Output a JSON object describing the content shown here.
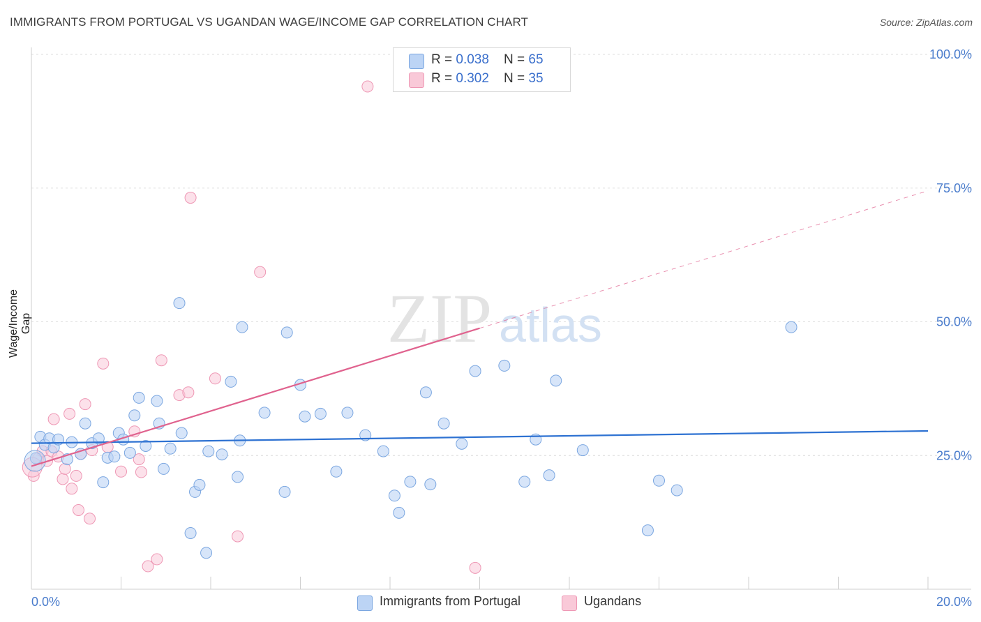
{
  "header": {
    "title": "IMMIGRANTS FROM PORTUGAL VS UGANDAN WAGE/INCOME GAP CORRELATION CHART",
    "source": "Source: ZipAtlas.com"
  },
  "watermark": {
    "zip": "ZIP",
    "atlas": "atlas"
  },
  "legend": {
    "rows": [
      {
        "r_label": "R = ",
        "r_value": "0.038",
        "n_label": "N = ",
        "n_value": "65"
      },
      {
        "r_label": "R = ",
        "r_value": "0.302",
        "n_label": "N = ",
        "n_value": "35"
      }
    ],
    "bottom": [
      "Immigrants from Portugal",
      "Ugandans"
    ]
  },
  "colors": {
    "blue_fill": "#bcd4f5",
    "blue_stroke": "#7aa6e0",
    "blue_line": "#2e72d2",
    "pink_fill": "#f9c9d8",
    "pink_stroke": "#ee97b4",
    "pink_line": "#e0628e"
  },
  "chart_data": {
    "type": "scatter",
    "title": "IMMIGRANTS FROM PORTUGAL VS UGANDAN WAGE/INCOME GAP CORRELATION CHART",
    "xlabel": "",
    "ylabel": "Wage/Income Gap",
    "xlim": [
      0,
      20
    ],
    "ylim": [
      0,
      100
    ],
    "x_tick_labels": [
      "0.0%",
      "20.0%"
    ],
    "y_ticks": [
      25,
      50,
      75,
      100
    ],
    "y_tick_labels": [
      "25.0%",
      "50.0%",
      "75.0%",
      "100.0%"
    ],
    "series": [
      {
        "name": "Immigrants from Portugal",
        "R": 0.038,
        "N": 65,
        "trend": {
          "x0": 0,
          "y0": 27.3,
          "x1": 20,
          "y1": 29.6
        },
        "points": [
          [
            0.1,
            24.5
          ],
          [
            0.2,
            28.5
          ],
          [
            0.3,
            27.0
          ],
          [
            0.4,
            28.2
          ],
          [
            0.5,
            26.5
          ],
          [
            0.6,
            28.0
          ],
          [
            0.8,
            24.3
          ],
          [
            0.9,
            27.5
          ],
          [
            1.1,
            25.3
          ],
          [
            1.2,
            31.0
          ],
          [
            1.35,
            27.3
          ],
          [
            1.5,
            28.2
          ],
          [
            1.6,
            20.0
          ],
          [
            1.7,
            24.6
          ],
          [
            1.85,
            24.8
          ],
          [
            1.95,
            29.2
          ],
          [
            2.05,
            28.0
          ],
          [
            2.2,
            25.5
          ],
          [
            2.3,
            32.5
          ],
          [
            2.4,
            35.8
          ],
          [
            2.55,
            26.8
          ],
          [
            2.8,
            35.2
          ],
          [
            2.85,
            31.0
          ],
          [
            2.95,
            22.5
          ],
          [
            3.1,
            26.3
          ],
          [
            3.3,
            53.5
          ],
          [
            3.35,
            29.2
          ],
          [
            3.55,
            10.5
          ],
          [
            3.65,
            18.2
          ],
          [
            3.75,
            19.5
          ],
          [
            3.9,
            6.8
          ],
          [
            3.95,
            25.8
          ],
          [
            4.25,
            25.2
          ],
          [
            4.45,
            38.8
          ],
          [
            4.6,
            21.0
          ],
          [
            4.65,
            27.8
          ],
          [
            4.7,
            49.0
          ],
          [
            5.2,
            33.0
          ],
          [
            5.65,
            18.2
          ],
          [
            5.7,
            48.0
          ],
          [
            6.0,
            38.2
          ],
          [
            6.1,
            32.3
          ],
          [
            6.45,
            32.8
          ],
          [
            6.8,
            22.0
          ],
          [
            7.05,
            33.0
          ],
          [
            7.45,
            28.8
          ],
          [
            7.85,
            25.8
          ],
          [
            8.1,
            17.5
          ],
          [
            8.2,
            14.3
          ],
          [
            8.45,
            20.1
          ],
          [
            8.8,
            36.8
          ],
          [
            8.9,
            19.6
          ],
          [
            9.2,
            31.0
          ],
          [
            9.6,
            27.2
          ],
          [
            9.9,
            40.8
          ],
          [
            10.55,
            41.8
          ],
          [
            11.0,
            20.1
          ],
          [
            11.25,
            28.0
          ],
          [
            11.55,
            21.3
          ],
          [
            11.7,
            39.0
          ],
          [
            12.3,
            26.0
          ],
          [
            13.75,
            11.0
          ],
          [
            14.0,
            20.3
          ],
          [
            14.4,
            18.5
          ],
          [
            16.95,
            49.0
          ]
        ]
      },
      {
        "name": "Ugandans",
        "R": 0.302,
        "N": 35,
        "trend": {
          "x0": 0,
          "y0": 23.0,
          "x1": 10,
          "y1": 48.8,
          "x_ext": 20,
          "y_ext": 74.5
        },
        "points": [
          [
            0.05,
            21.2
          ],
          [
            0.15,
            24.5
          ],
          [
            0.25,
            25.8
          ],
          [
            0.35,
            24.0
          ],
          [
            0.45,
            25.8
          ],
          [
            0.5,
            31.8
          ],
          [
            0.6,
            24.8
          ],
          [
            0.7,
            20.6
          ],
          [
            0.75,
            22.5
          ],
          [
            0.85,
            32.8
          ],
          [
            0.9,
            18.8
          ],
          [
            1.0,
            21.2
          ],
          [
            1.05,
            14.8
          ],
          [
            1.1,
            25.3
          ],
          [
            1.2,
            34.6
          ],
          [
            1.3,
            13.2
          ],
          [
            1.35,
            26.0
          ],
          [
            1.6,
            42.2
          ],
          [
            1.7,
            26.6
          ],
          [
            2.0,
            22.0
          ],
          [
            2.3,
            29.5
          ],
          [
            2.4,
            24.3
          ],
          [
            2.45,
            21.9
          ],
          [
            2.6,
            4.3
          ],
          [
            2.8,
            5.6
          ],
          [
            2.9,
            42.8
          ],
          [
            3.3,
            36.3
          ],
          [
            3.5,
            36.8
          ],
          [
            3.55,
            73.2
          ],
          [
            4.1,
            39.4
          ],
          [
            4.6,
            9.9
          ],
          [
            5.1,
            59.3
          ],
          [
            7.5,
            94.0
          ],
          [
            9.9,
            4.0
          ],
          [
            0.02,
            22.8
          ]
        ]
      }
    ]
  }
}
